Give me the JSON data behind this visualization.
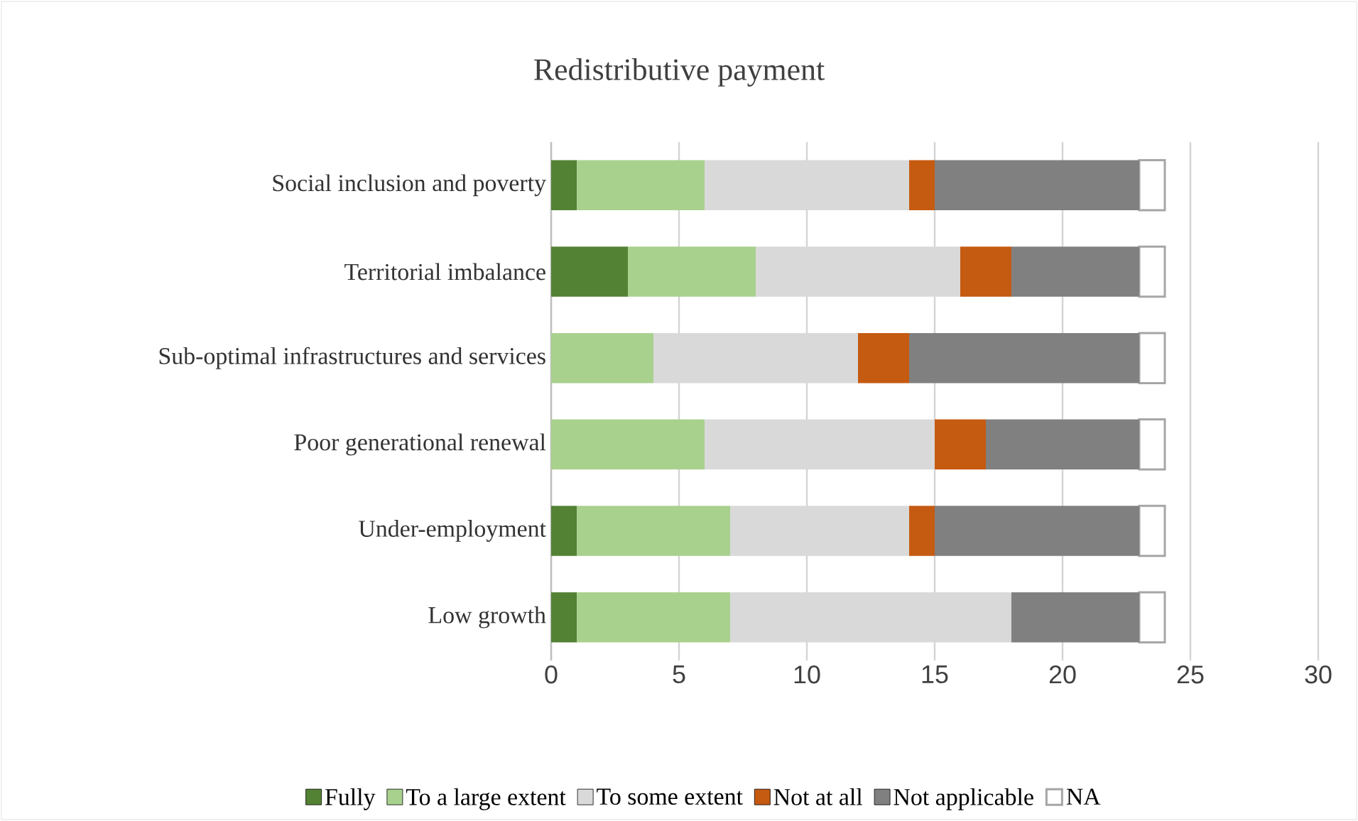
{
  "chart_data": {
    "type": "bar",
    "orientation": "horizontal",
    "stacked": true,
    "title": "Redistributive payment",
    "categories": [
      "Social inclusion and poverty",
      "Territorial imbalance",
      "Sub-optimal infrastructures and services",
      "Poor generational renewal",
      "Under-employment",
      "Low growth"
    ],
    "series": [
      {
        "name": "Fully",
        "color": "#548235",
        "values": [
          1,
          3,
          0,
          0,
          1,
          1
        ]
      },
      {
        "name": "To a large extent",
        "color": "#a9d18e",
        "values": [
          5,
          5,
          4,
          6,
          6,
          6
        ]
      },
      {
        "name": "To some extent",
        "color": "#d9d9d9",
        "values": [
          8,
          8,
          8,
          9,
          7,
          11
        ]
      },
      {
        "name": "Not at all",
        "color": "#c55a11",
        "values": [
          1,
          2,
          2,
          2,
          1,
          0
        ]
      },
      {
        "name": "Not applicable",
        "color": "#808080",
        "values": [
          8,
          5,
          9,
          6,
          8,
          5
        ]
      },
      {
        "name": "NA",
        "color": "#ffffff",
        "values": [
          1,
          1,
          1,
          1,
          1,
          1
        ]
      }
    ],
    "xlim": [
      0,
      30
    ],
    "xticks": [
      0,
      5,
      10,
      15,
      20,
      25,
      30
    ],
    "grid": "x",
    "legend": "bottom"
  }
}
